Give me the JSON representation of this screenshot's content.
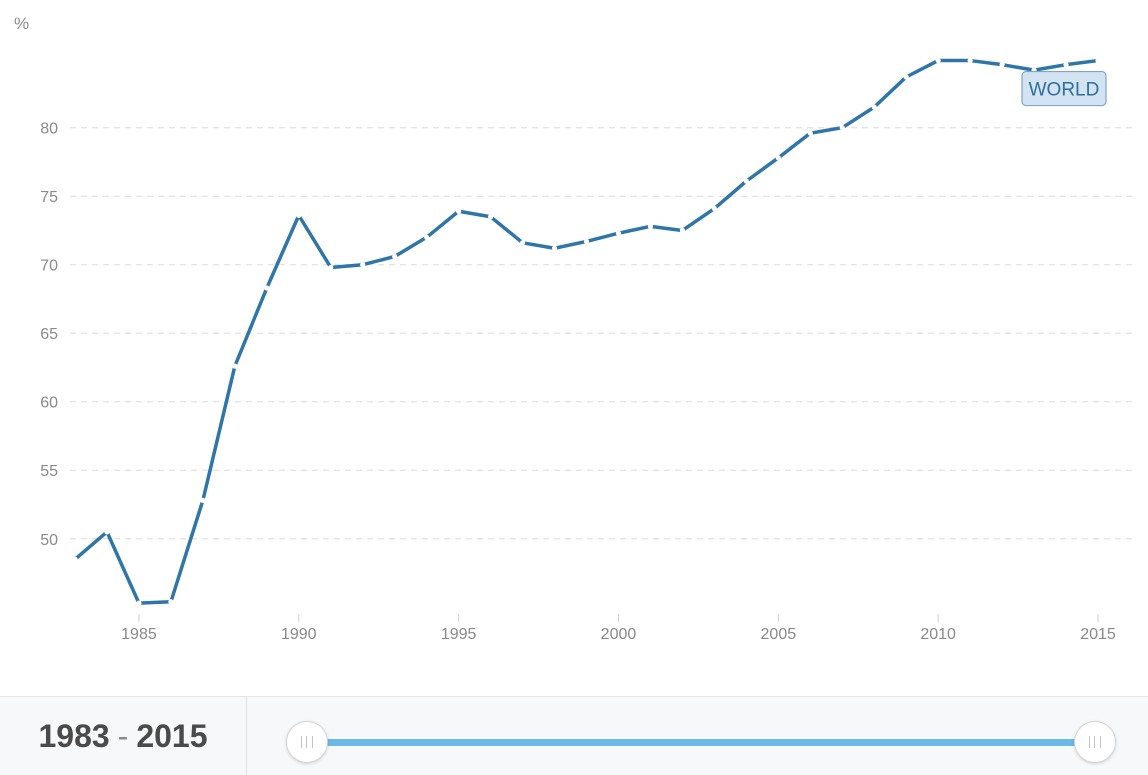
{
  "chart_data": {
    "type": "line",
    "ylabel": "%",
    "x": [
      1983,
      1984,
      1985,
      1986,
      1987,
      1988,
      1989,
      1990,
      1991,
      1992,
      1993,
      1994,
      1995,
      1996,
      1997,
      1998,
      1999,
      2000,
      2001,
      2002,
      2003,
      2004,
      2005,
      2006,
      2007,
      2008,
      2009,
      2010,
      2011,
      2012,
      2013,
      2014,
      2015
    ],
    "series": [
      {
        "name": "WORLD",
        "color": "#2e75a8",
        "values": [
          48.5,
          50.5,
          45.3,
          45.4,
          52.8,
          62.6,
          68.3,
          73.6,
          69.8,
          70.0,
          70.6,
          72.0,
          73.9,
          73.5,
          71.6,
          71.2,
          71.7,
          72.3,
          72.8,
          72.5,
          74.1,
          76.1,
          77.8,
          79.6,
          80.0,
          81.5,
          83.7,
          84.9,
          84.9,
          84.6,
          84.2,
          84.6,
          84.9
        ]
      }
    ],
    "xticks": [
      1985,
      1990,
      1995,
      2000,
      2005,
      2010,
      2015
    ],
    "yticks": [
      50,
      55,
      60,
      65,
      70,
      75,
      80
    ],
    "xlim": [
      1983,
      2015
    ],
    "ylim": [
      44.8,
      86.4
    ],
    "grid": true
  },
  "footer": {
    "range_start": "1983",
    "range_sep": "-",
    "range_end": "2015"
  }
}
